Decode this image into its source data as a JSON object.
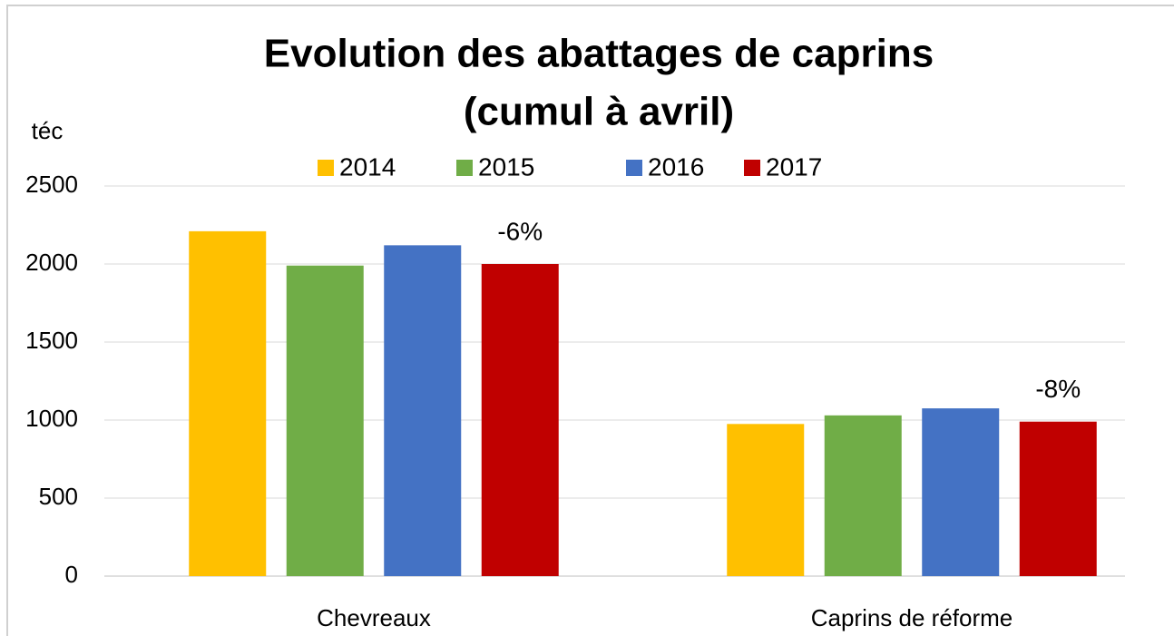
{
  "chart_data": {
    "type": "bar",
    "title": "Evolution des abattages de caprins",
    "subtitle": "(cumul à avril)",
    "y_label": "téc",
    "categories": [
      "Chevreaux",
      "Caprins de réforme"
    ],
    "series": [
      {
        "name": "2014",
        "color": "#ffc000",
        "values": [
          2210,
          975
        ]
      },
      {
        "name": "2015",
        "color": "#70ad47",
        "values": [
          1990,
          1030
        ]
      },
      {
        "name": "2016",
        "color": "#4472c4",
        "values": [
          2120,
          1075
        ]
      },
      {
        "name": "2017",
        "color": "#c00000",
        "values": [
          2000,
          990
        ]
      }
    ],
    "annotations": [
      "-6%",
      "-8%"
    ],
    "ylim": [
      0,
      2500
    ],
    "yticks": [
      0,
      500,
      1000,
      1500,
      2000,
      2500
    ],
    "grid": true,
    "legend": "top"
  }
}
